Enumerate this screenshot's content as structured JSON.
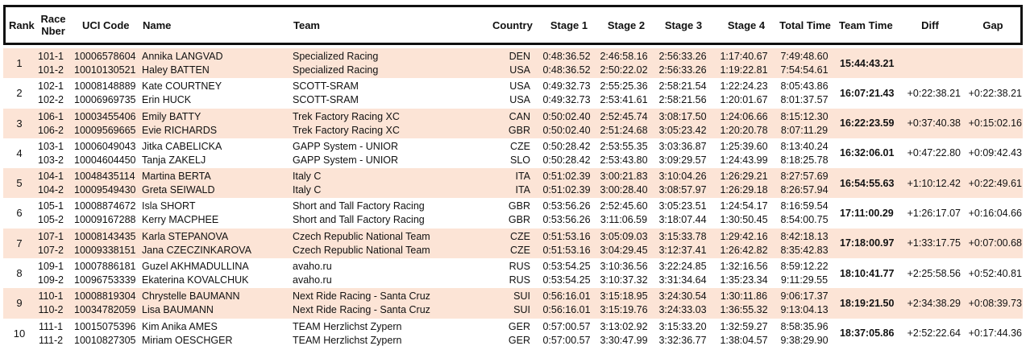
{
  "header": {
    "rank": "Rank",
    "race_nber_1": "Race",
    "race_nber_2": "Nber",
    "uci_code": "UCI Code",
    "name": "Name",
    "team": "Team",
    "country": "Country",
    "stage1": "Stage 1",
    "stage2": "Stage 2",
    "stage3": "Stage 3",
    "stage4": "Stage 4",
    "total_time": "Total Time",
    "team_time": "Team Time",
    "diff": "Diff",
    "gap": "Gap"
  },
  "colors": {
    "shaded_row": "#fce4d6",
    "header_border": "#111111"
  },
  "results": [
    {
      "rank": "1",
      "team_time": "15:44:43.21",
      "diff": "",
      "gap": "",
      "riders": [
        {
          "race": "101-1",
          "uci": "10006578604",
          "name": "Annika LANGVAD",
          "team": "Specialized Racing",
          "country": "DEN",
          "s1": "0:48:36.52",
          "s2": "2:46:58.16",
          "s3": "2:56:33.26",
          "s4": "1:17:40.67",
          "total": "7:49:48.60"
        },
        {
          "race": "101-2",
          "uci": "10010130521",
          "name": "Haley BATTEN",
          "team": "Specialized Racing",
          "country": "USA",
          "s1": "0:48:36.52",
          "s2": "2:50:22.02",
          "s3": "2:56:33.26",
          "s4": "1:19:22.81",
          "total": "7:54:54.61"
        }
      ]
    },
    {
      "rank": "2",
      "team_time": "16:07:21.43",
      "diff": "+0:22:38.21",
      "gap": "+0:22:38.21",
      "riders": [
        {
          "race": "102-1",
          "uci": "10008148889",
          "name": "Kate COURTNEY",
          "team": "SCOTT-SRAM",
          "country": "USA",
          "s1": "0:49:32.73",
          "s2": "2:55:25.36",
          "s3": "2:58:21.54",
          "s4": "1:22:24.23",
          "total": "8:05:43.86"
        },
        {
          "race": "102-2",
          "uci": "10006969735",
          "name": "Erin HUCK",
          "team": "SCOTT-SRAM",
          "country": "USA",
          "s1": "0:49:32.73",
          "s2": "2:53:41.61",
          "s3": "2:58:21.56",
          "s4": "1:20:01.67",
          "total": "8:01:37.57"
        }
      ]
    },
    {
      "rank": "3",
      "team_time": "16:22:23.59",
      "diff": "+0:37:40.38",
      "gap": "+0:15:02.16",
      "riders": [
        {
          "race": "106-1",
          "uci": "10003455406",
          "name": "Emily BATTY",
          "team": "Trek Factory Racing XC",
          "country": "CAN",
          "s1": "0:50:02.40",
          "s2": "2:52:45.74",
          "s3": "3:08:17.50",
          "s4": "1:24:06.66",
          "total": "8:15:12.30"
        },
        {
          "race": "106-2",
          "uci": "10009569665",
          "name": "Evie RICHARDS",
          "team": "Trek Factory Racing XC",
          "country": "GBR",
          "s1": "0:50:02.40",
          "s2": "2:51:24.68",
          "s3": "3:05:23.42",
          "s4": "1:20:20.78",
          "total": "8:07:11.29"
        }
      ]
    },
    {
      "rank": "4",
      "team_time": "16:32:06.01",
      "diff": "+0:47:22.80",
      "gap": "+0:09:42.43",
      "riders": [
        {
          "race": "103-1",
          "uci": "10006049043",
          "name": "Jitka CABELICKA",
          "team": "GAPP System - UNIOR",
          "country": "CZE",
          "s1": "0:50:28.42",
          "s2": "2:53:55.35",
          "s3": "3:03:36.87",
          "s4": "1:25:39.60",
          "total": "8:13:40.24"
        },
        {
          "race": "103-2",
          "uci": "10004604450",
          "name": "Tanja ZAKELJ",
          "team": "GAPP System - UNIOR",
          "country": "SLO",
          "s1": "0:50:28.42",
          "s2": "2:53:43.80",
          "s3": "3:09:29.57",
          "s4": "1:24:43.99",
          "total": "8:18:25.78"
        }
      ]
    },
    {
      "rank": "5",
      "team_time": "16:54:55.63",
      "diff": "+1:10:12.42",
      "gap": "+0:22:49.61",
      "riders": [
        {
          "race": "104-1",
          "uci": "10048435114",
          "name": "Martina BERTA",
          "team": "Italy C",
          "country": "ITA",
          "s1": "0:51:02.39",
          "s2": "3:00:21.83",
          "s3": "3:10:04.26",
          "s4": "1:26:29.21",
          "total": "8:27:57.69"
        },
        {
          "race": "104-2",
          "uci": "10009549430",
          "name": "Greta SEIWALD",
          "team": "Italy C",
          "country": "ITA",
          "s1": "0:51:02.39",
          "s2": "3:00:28.40",
          "s3": "3:08:57.97",
          "s4": "1:26:29.18",
          "total": "8:26:57.94"
        }
      ]
    },
    {
      "rank": "6",
      "team_time": "17:11:00.29",
      "diff": "+1:26:17.07",
      "gap": "+0:16:04.66",
      "riders": [
        {
          "race": "105-1",
          "uci": "10008874672",
          "name": "Isla SHORT",
          "team": "Short and Tall Factory Racing",
          "country": "GBR",
          "s1": "0:53:56.26",
          "s2": "2:52:45.60",
          "s3": "3:05:23.51",
          "s4": "1:24:54.17",
          "total": "8:16:59.54"
        },
        {
          "race": "105-2",
          "uci": "10009167288",
          "name": "Kerry MACPHEE",
          "team": "Short and Tall Factory Racing",
          "country": "GBR",
          "s1": "0:53:56.26",
          "s2": "3:11:06.59",
          "s3": "3:18:07.44",
          "s4": "1:30:50.45",
          "total": "8:54:00.75"
        }
      ]
    },
    {
      "rank": "7",
      "team_time": "17:18:00.97",
      "diff": "+1:33:17.75",
      "gap": "+0:07:00.68",
      "riders": [
        {
          "race": "107-1",
          "uci": "10008143435",
          "name": "Karla STEPANOVA",
          "team": "Czech Republic National Team",
          "country": "CZE",
          "s1": "0:51:53.16",
          "s2": "3:05:09.03",
          "s3": "3:15:33.78",
          "s4": "1:29:42.16",
          "total": "8:42:18.13"
        },
        {
          "race": "107-2",
          "uci": "10009338151",
          "name": "Jana CZECZINKAROVA",
          "team": "Czech Republic National Team",
          "country": "CZE",
          "s1": "0:51:53.16",
          "s2": "3:04:29.45",
          "s3": "3:12:37.41",
          "s4": "1:26:42.82",
          "total": "8:35:42.83"
        }
      ]
    },
    {
      "rank": "8",
      "team_time": "18:10:41.77",
      "diff": "+2:25:58.56",
      "gap": "+0:52:40.81",
      "riders": [
        {
          "race": "109-1",
          "uci": "10007886181",
          "name": "Guzel AKHMADULLINA",
          "team": "avaho.ru",
          "country": "RUS",
          "s1": "0:53:54.25",
          "s2": "3:10:36.56",
          "s3": "3:22:24.85",
          "s4": "1:32:16.56",
          "total": "8:59:12.22"
        },
        {
          "race": "109-2",
          "uci": "10096753339",
          "name": "Ekaterina KOVALCHUK",
          "team": "avaho.ru",
          "country": "RUS",
          "s1": "0:53:54.25",
          "s2": "3:10:37.32",
          "s3": "3:31:34.64",
          "s4": "1:35:23.34",
          "total": "9:11:29.55"
        }
      ]
    },
    {
      "rank": "9",
      "team_time": "18:19:21.50",
      "diff": "+2:34:38.29",
      "gap": "+0:08:39.73",
      "riders": [
        {
          "race": "110-1",
          "uci": "10008819304",
          "name": "Chrystelle BAUMANN",
          "team": "Next Ride Racing - Santa Cruz",
          "country": "SUI",
          "s1": "0:56:16.01",
          "s2": "3:15:18.95",
          "s3": "3:24:30.54",
          "s4": "1:30:11.86",
          "total": "9:06:17.37"
        },
        {
          "race": "110-2",
          "uci": "10034782059",
          "name": "Lisa BAUMANN",
          "team": "Next Ride Racing - Santa Cruz",
          "country": "SUI",
          "s1": "0:56:16.01",
          "s2": "3:15:19.76",
          "s3": "3:24:33.03",
          "s4": "1:36:55.32",
          "total": "9:13:04.13"
        }
      ]
    },
    {
      "rank": "10",
      "team_time": "18:37:05.86",
      "diff": "+2:52:22.64",
      "gap": "+0:17:44.36",
      "riders": [
        {
          "race": "111-1",
          "uci": "10015075396",
          "name": "Kim Anika AMES",
          "team": "TEAM Herzlichst Zypern",
          "country": "GER",
          "s1": "0:57:00.57",
          "s2": "3:13:02.92",
          "s3": "3:15:33.20",
          "s4": "1:32:59.27",
          "total": "8:58:35.96"
        },
        {
          "race": "111-2",
          "uci": "10010827305",
          "name": "Miriam OESCHGER",
          "team": "TEAM Herzlichst Zypern",
          "country": "GER",
          "s1": "0:57:00.57",
          "s2": "3:30:47.99",
          "s3": "3:32:36.77",
          "s4": "1:38:04.57",
          "total": "9:38:29.90"
        }
      ]
    }
  ]
}
